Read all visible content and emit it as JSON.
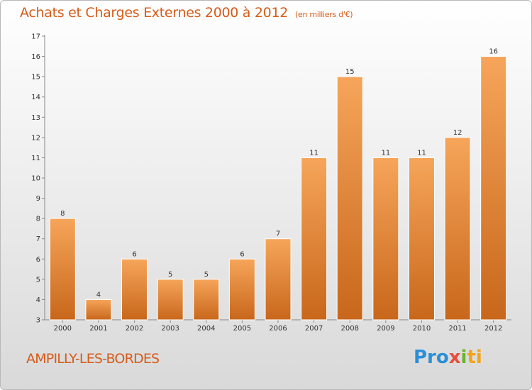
{
  "title": "Achats et Charges Externes 2000 à 2012",
  "unit": "(en milliers d'€)",
  "place": "AMPILLY-LES-BORDES",
  "logo": [
    "Pro",
    "x",
    "i",
    "ti"
  ],
  "colors": {
    "title": "#d65c1a",
    "bar_light": "#f6a55a",
    "bar_dark": "#c8671b"
  },
  "chart_data": {
    "type": "bar",
    "categories": [
      "2000",
      "2001",
      "2002",
      "2003",
      "2004",
      "2005",
      "2006",
      "2007",
      "2008",
      "2009",
      "2010",
      "2011",
      "2012"
    ],
    "values": [
      8,
      4,
      6,
      5,
      5,
      6,
      7,
      11,
      15,
      11,
      11,
      12,
      16
    ],
    "ylim": [
      3,
      17
    ],
    "yticks": [
      3,
      4,
      5,
      6,
      7,
      8,
      9,
      10,
      11,
      12,
      13,
      14,
      15,
      16,
      17
    ],
    "grid": false,
    "data_labels": true
  }
}
